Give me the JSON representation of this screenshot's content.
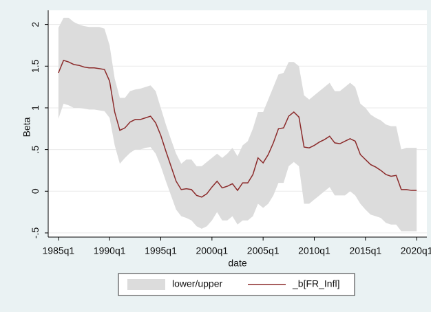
{
  "chart_data": {
    "type": "line",
    "xlabel": "date",
    "ylabel": "Beta",
    "x": [
      "1985q1",
      "1985q3",
      "1986q1",
      "1986q3",
      "1987q1",
      "1987q3",
      "1988q1",
      "1988q3",
      "1989q1",
      "1989q3",
      "1990q1",
      "1990q3",
      "1991q1",
      "1991q3",
      "1992q1",
      "1992q3",
      "1993q1",
      "1993q3",
      "1994q1",
      "1994q3",
      "1995q1",
      "1995q3",
      "1996q1",
      "1996q3",
      "1997q1",
      "1997q3",
      "1998q1",
      "1998q3",
      "1999q1",
      "1999q3",
      "2000q1",
      "2000q3",
      "2001q1",
      "2001q3",
      "2002q1",
      "2002q3",
      "2003q1",
      "2003q3",
      "2004q1",
      "2004q3",
      "2005q1",
      "2005q3",
      "2006q1",
      "2006q3",
      "2007q1",
      "2007q3",
      "2008q1",
      "2008q3",
      "2009q1",
      "2009q3",
      "2010q1",
      "2010q3",
      "2011q1",
      "2011q3",
      "2012q1",
      "2012q3",
      "2013q1",
      "2013q3",
      "2014q1",
      "2014q3",
      "2015q1",
      "2015q3",
      "2016q1",
      "2016q3",
      "2017q1",
      "2017q3",
      "2018q1",
      "2018q3",
      "2019q1",
      "2019q3",
      "2020q1"
    ],
    "series": [
      {
        "name": "lower/upper",
        "type": "band",
        "color": "#dcdcdc",
        "lower": [
          0.87,
          1.05,
          1.03,
          1.0,
          1.0,
          0.99,
          0.98,
          0.98,
          0.97,
          0.96,
          0.88,
          0.55,
          0.33,
          0.4,
          0.46,
          0.5,
          0.5,
          0.52,
          0.53,
          0.45,
          0.3,
          0.12,
          -0.05,
          -0.22,
          -0.3,
          -0.32,
          -0.35,
          -0.42,
          -0.45,
          -0.42,
          -0.35,
          -0.25,
          -0.35,
          -0.35,
          -0.3,
          -0.4,
          -0.35,
          -0.35,
          -0.3,
          -0.15,
          -0.2,
          -0.15,
          -0.05,
          0.1,
          0.1,
          0.3,
          0.35,
          0.3,
          -0.15,
          -0.15,
          -0.1,
          -0.05,
          0.0,
          0.05,
          -0.05,
          -0.05,
          -0.05,
          0.0,
          -0.05,
          -0.15,
          -0.22,
          -0.28,
          -0.3,
          -0.32,
          -0.38,
          -0.4,
          -0.4,
          -0.48,
          -0.48,
          -0.48,
          -0.48
        ],
        "upper": [
          1.96,
          2.08,
          2.08,
          2.03,
          2.0,
          1.98,
          1.97,
          1.97,
          1.97,
          1.95,
          1.75,
          1.35,
          1.12,
          1.12,
          1.2,
          1.22,
          1.23,
          1.25,
          1.27,
          1.2,
          1.0,
          0.8,
          0.62,
          0.45,
          0.33,
          0.38,
          0.38,
          0.3,
          0.3,
          0.35,
          0.4,
          0.45,
          0.4,
          0.45,
          0.52,
          0.42,
          0.55,
          0.6,
          0.75,
          0.95,
          0.95,
          1.1,
          1.25,
          1.4,
          1.42,
          1.55,
          1.55,
          1.5,
          1.15,
          1.1,
          1.15,
          1.2,
          1.25,
          1.3,
          1.2,
          1.2,
          1.25,
          1.3,
          1.25,
          1.05,
          1.0,
          0.92,
          0.88,
          0.85,
          0.8,
          0.78,
          0.78,
          0.5,
          0.52,
          0.52,
          0.52
        ]
      },
      {
        "name": "_b[FR_Infl]",
        "type": "line",
        "color": "#8b2a2a",
        "values": [
          1.42,
          1.57,
          1.55,
          1.52,
          1.51,
          1.49,
          1.48,
          1.48,
          1.47,
          1.46,
          1.32,
          0.95,
          0.73,
          0.76,
          0.83,
          0.86,
          0.86,
          0.88,
          0.9,
          0.82,
          0.67,
          0.48,
          0.3,
          0.12,
          0.02,
          0.03,
          0.02,
          -0.05,
          -0.07,
          -0.03,
          0.05,
          0.12,
          0.04,
          0.06,
          0.09,
          0.01,
          0.1,
          0.1,
          0.2,
          0.4,
          0.34,
          0.44,
          0.58,
          0.75,
          0.76,
          0.9,
          0.95,
          0.89,
          0.53,
          0.52,
          0.55,
          0.59,
          0.62,
          0.66,
          0.58,
          0.57,
          0.6,
          0.63,
          0.6,
          0.44,
          0.38,
          0.32,
          0.29,
          0.25,
          0.2,
          0.18,
          0.19,
          0.02,
          0.02,
          0.01,
          0.01
        ]
      }
    ],
    "xlim": [
      "1984q1",
      "2021q1"
    ],
    "xticks": [
      "1985q1",
      "1990q1",
      "1995q1",
      "2000q1",
      "2005q1",
      "2010q1",
      "2015q1",
      "2020q1"
    ],
    "ylim": [
      -0.55,
      2.17
    ],
    "yticks": [
      {
        "value": -0.5,
        "label": "-.5"
      },
      0,
      {
        "value": 0.5,
        "label": ".5"
      },
      1,
      {
        "value": 1.5,
        "label": "1.5"
      },
      2
    ],
    "grid": true,
    "legend": "bottom"
  }
}
